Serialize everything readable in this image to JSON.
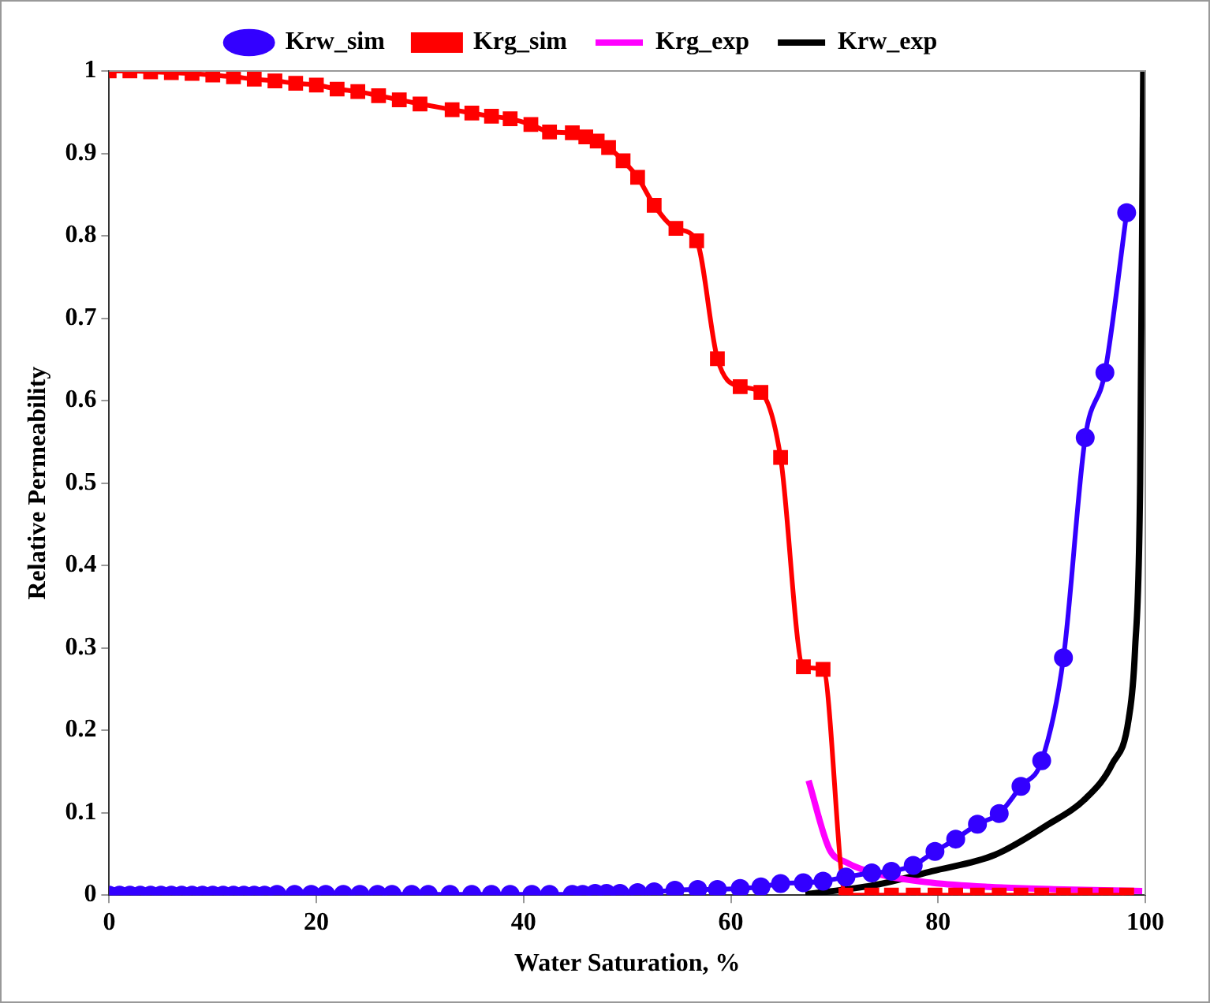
{
  "chart_data": {
    "type": "line",
    "xlabel": "Water Saturation, %",
    "ylabel": "Relative Permeability",
    "xlim": [
      0,
      100
    ],
    "xticks": [
      0,
      20,
      40,
      60,
      80,
      100
    ],
    "ylim": [
      0,
      1
    ],
    "yticks": [
      0,
      0.1,
      0.2,
      0.3,
      0.4,
      0.5,
      0.6,
      0.7,
      0.8,
      0.9,
      1
    ],
    "grid": false,
    "legend": "top",
    "series": [
      {
        "name": "Krw_sim",
        "color": "#3300ff",
        "marker": "circle",
        "x": [
          0,
          1,
          2,
          3,
          4,
          5,
          6,
          7,
          8,
          9,
          10,
          11,
          12,
          13,
          14,
          15,
          16.2,
          17.9,
          19.5,
          20.9,
          22.6,
          24.2,
          25.9,
          27.3,
          29.2,
          30.8,
          32.9,
          35.0,
          36.9,
          38.7,
          40.8,
          42.5,
          44.7,
          45.7,
          46.9,
          48.0,
          49.3,
          51.0,
          52.6,
          54.6,
          56.8,
          58.7,
          60.9,
          62.9,
          64.8,
          67.0,
          68.9,
          71.1,
          73.6,
          75.5,
          77.6,
          79.7,
          81.7,
          83.8,
          85.9,
          88.0,
          90.0,
          92.1,
          94.2,
          96.1,
          98.2
        ],
        "values": [
          0,
          0,
          0,
          0,
          0,
          0,
          0,
          0,
          0,
          0,
          0,
          0,
          0,
          0,
          0,
          0,
          0.001,
          0.001,
          0.001,
          0.001,
          0.001,
          0.001,
          0.001,
          0.001,
          0.001,
          0.001,
          0.001,
          0.001,
          0.001,
          0.001,
          0.001,
          0.001,
          0.001,
          0.001,
          0.002,
          0.002,
          0.002,
          0.003,
          0.004,
          0.006,
          0.007,
          0.007,
          0.008,
          0.01,
          0.014,
          0.015,
          0.017,
          0.022,
          0.027,
          0.029,
          0.036,
          0.053,
          0.068,
          0.086,
          0.099,
          0.132,
          0.163,
          0.288,
          0.555,
          0.634,
          0.828
        ]
      },
      {
        "name": "Krg_sim",
        "color": "#ff0000",
        "marker": "square",
        "x": [
          0,
          2,
          4,
          6,
          8,
          10,
          12,
          14,
          16,
          18,
          20,
          22,
          24,
          26,
          28,
          30,
          33.1,
          35.0,
          36.9,
          38.7,
          40.7,
          42.5,
          44.7,
          46.0,
          47.1,
          48.2,
          49.6,
          51.0,
          52.6,
          54.7,
          56.7,
          58.7,
          60.9,
          62.9,
          64.8,
          67.0,
          68.9,
          71.1,
          73.6,
          75.5,
          77.6,
          79.7,
          81.7,
          83.8,
          85.9,
          88.0,
          90.0,
          92.1,
          94.2,
          96.2,
          98.2
        ],
        "values": [
          1,
          1,
          0.999,
          0.998,
          0.997,
          0.995,
          0.993,
          0.99,
          0.988,
          0.985,
          0.983,
          0.978,
          0.975,
          0.97,
          0.965,
          0.96,
          0.953,
          0.949,
          0.945,
          0.942,
          0.935,
          0.926,
          0.925,
          0.92,
          0.915,
          0.907,
          0.891,
          0.871,
          0.837,
          0.809,
          0.794,
          0.651,
          0.617,
          0.61,
          0.531,
          0.277,
          0.274,
          0,
          0,
          0,
          0,
          0,
          0,
          0,
          0,
          0,
          0,
          0,
          0,
          0,
          0
        ]
      },
      {
        "name": "Krg_exp",
        "color": "#ff00ff",
        "marker": "none",
        "x": [
          67.5,
          69.5,
          71.1,
          74.4,
          79.4,
          84.9,
          92.1,
          99.7
        ],
        "values": [
          0.139,
          0.056,
          0.04,
          0.025,
          0.015,
          0.01,
          0.007,
          0.005
        ]
      },
      {
        "name": "Krw_exp",
        "color": "#000000",
        "marker": "none",
        "x": [
          67.2,
          73.8,
          79.4,
          85.5,
          90.4,
          94.3,
          96.8,
          98.4,
          99.0,
          99.5,
          99.8
        ],
        "values": [
          0.001,
          0.012,
          0.029,
          0.049,
          0.084,
          0.118,
          0.159,
          0.214,
          0.296,
          0.5,
          1
        ]
      }
    ]
  }
}
